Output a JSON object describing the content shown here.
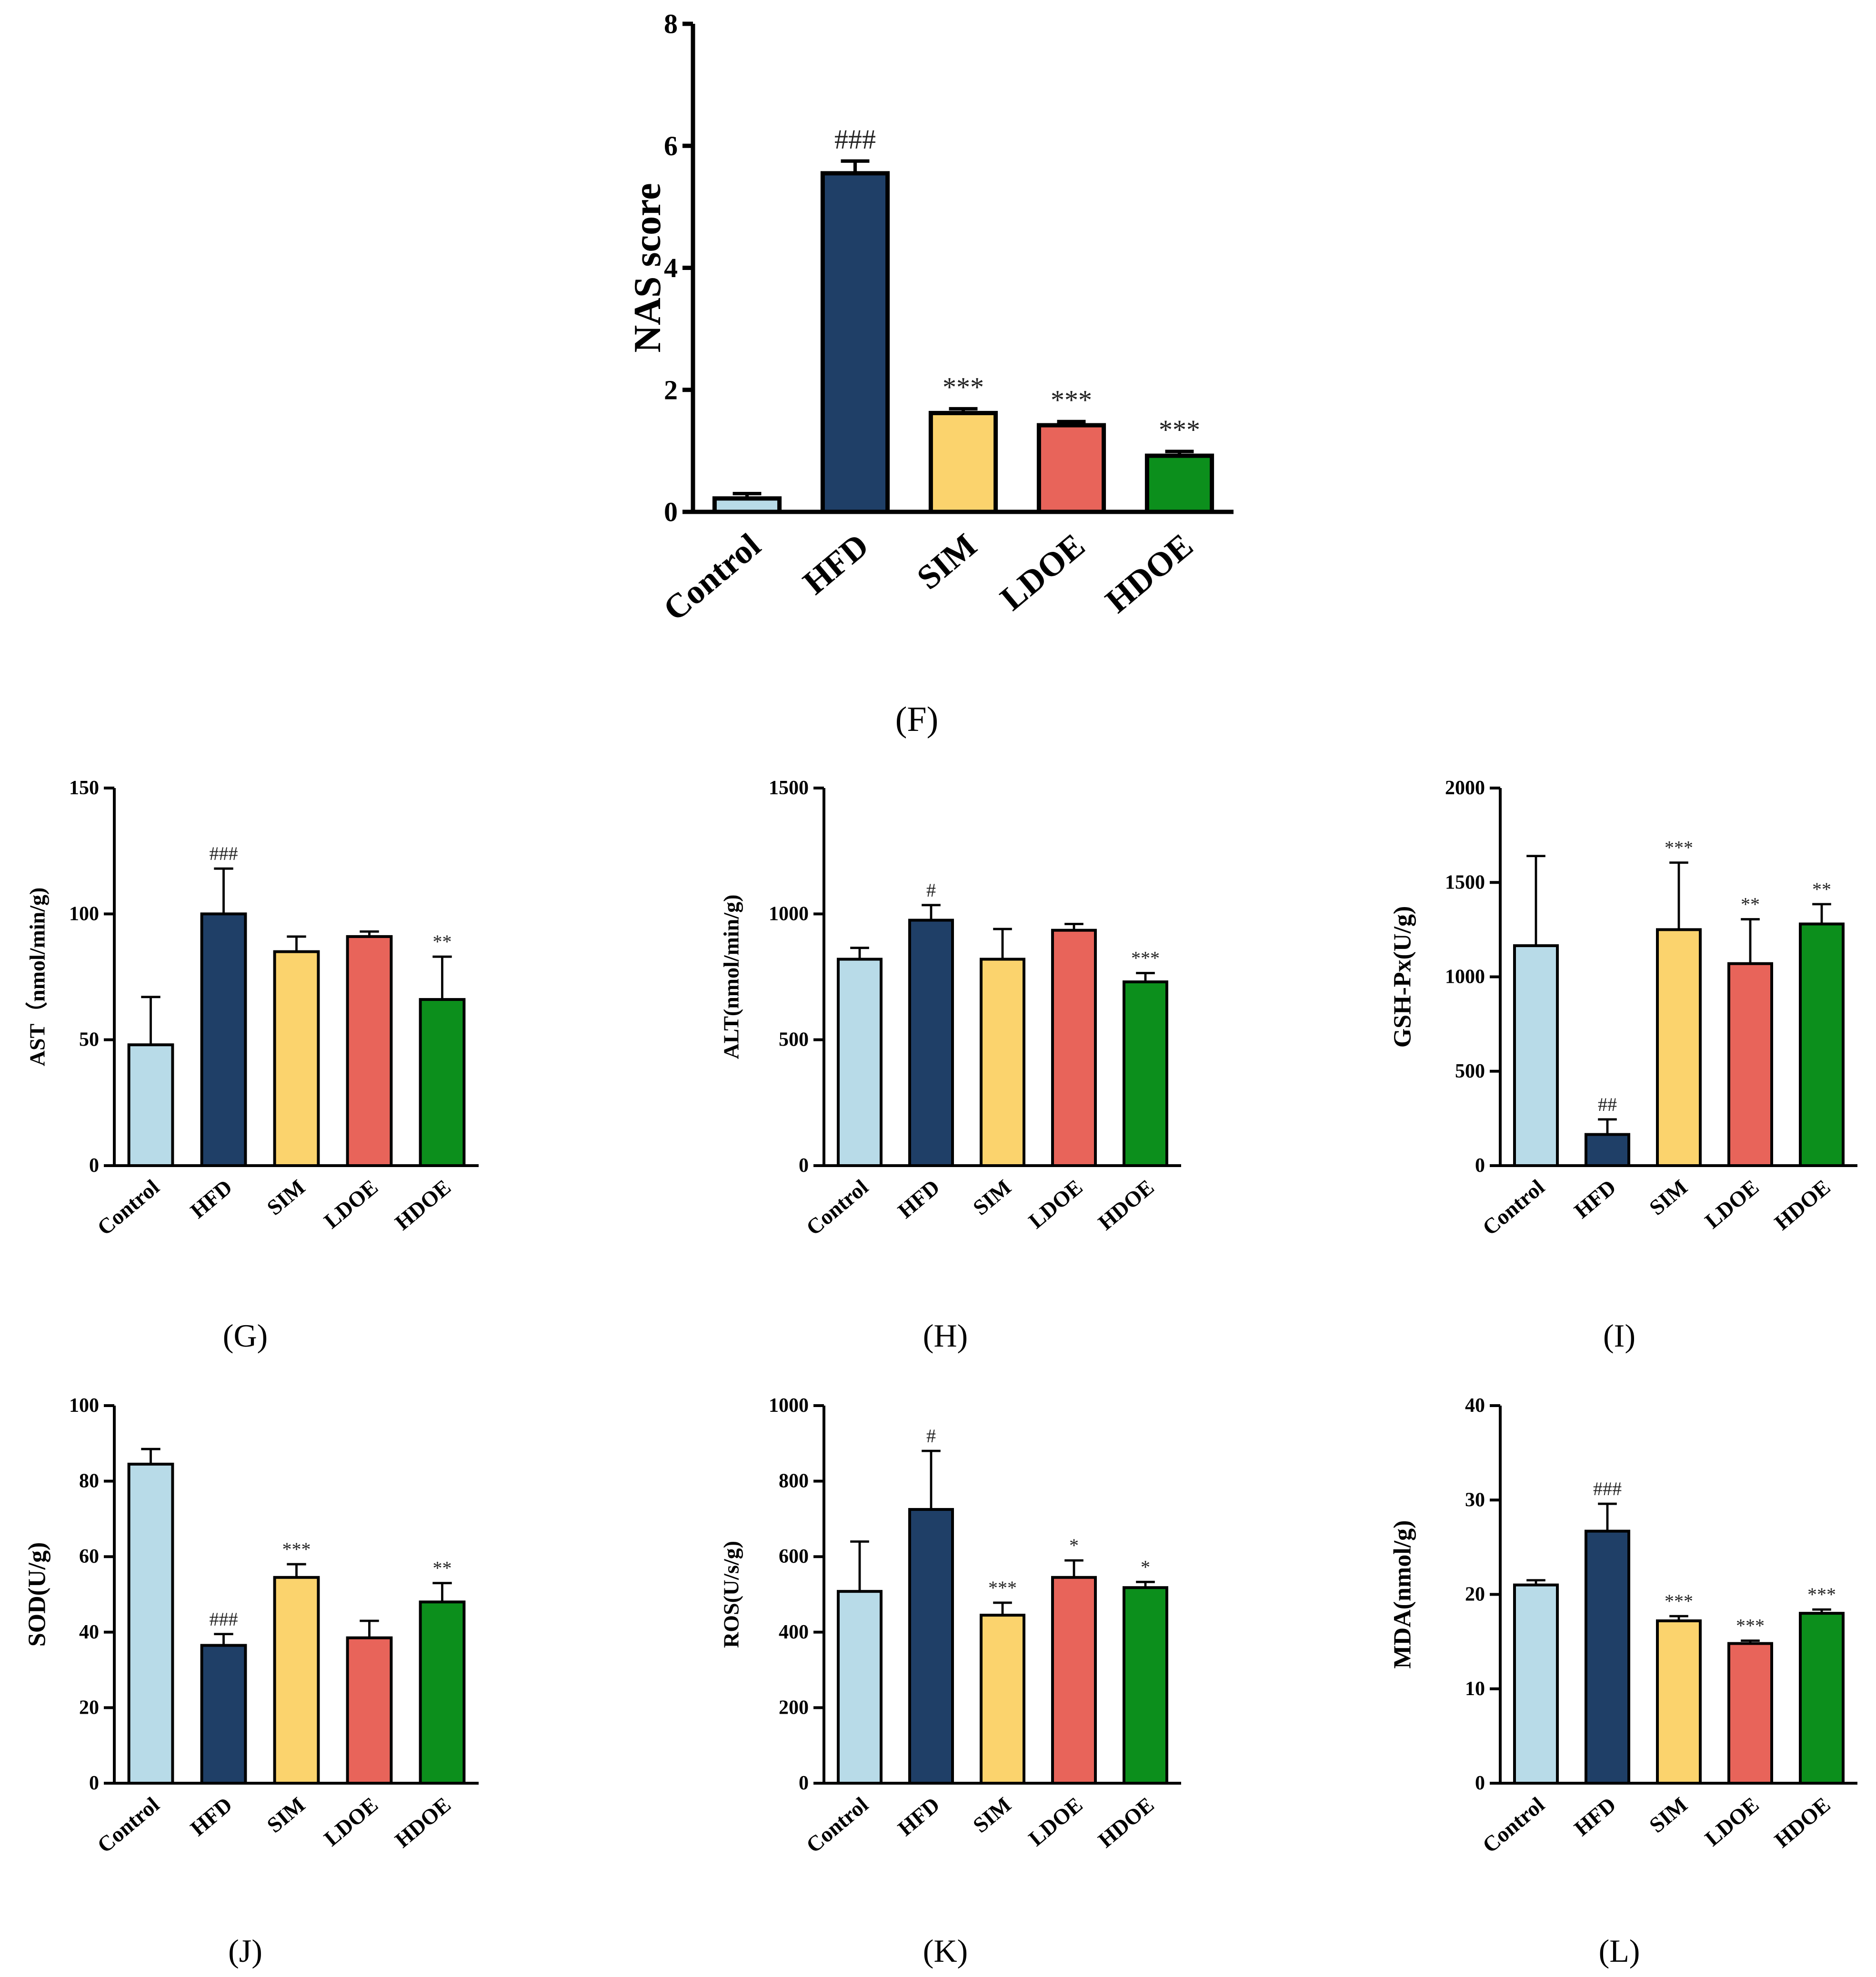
{
  "figure": {
    "categories": [
      "Control",
      "HFD",
      "SIM",
      "LDOE",
      "HDOE"
    ],
    "colors": [
      "#b8dbe8",
      "#1f3f67",
      "#fbd36d",
      "#e8645a",
      "#0c8f1c"
    ],
    "edge_color": "#000000"
  },
  "chart_data": [
    {
      "id": "F",
      "type": "bar",
      "panel_label": "(F)",
      "title": "",
      "xlabel": "",
      "ylabel": "NAS score",
      "ylim": [
        0,
        8
      ],
      "yticks": [
        0,
        2,
        4,
        6,
        8
      ],
      "categories": [
        "Control",
        "HFD",
        "SIM",
        "LDOE",
        "HDOE"
      ],
      "values": [
        0.22,
        5.55,
        1.62,
        1.42,
        0.92
      ],
      "errors": [
        0.08,
        0.2,
        0.07,
        0.06,
        0.07
      ],
      "annotations": [
        "",
        "###",
        "***",
        "***",
        "***"
      ]
    },
    {
      "id": "G",
      "type": "bar",
      "panel_label": "(G)",
      "title": "",
      "xlabel": "",
      "ylabel": "AST（nmol/min/g)",
      "ylim": [
        0,
        150
      ],
      "yticks": [
        0,
        50,
        100,
        150
      ],
      "categories": [
        "Control",
        "HFD",
        "SIM",
        "LDOE",
        "HDOE"
      ],
      "values": [
        48,
        100,
        85,
        91,
        66
      ],
      "errors": [
        19,
        18,
        6,
        2,
        17
      ],
      "annotations": [
        "",
        "###",
        "",
        "",
        "**"
      ]
    },
    {
      "id": "H",
      "type": "bar",
      "panel_label": "(H)",
      "title": "",
      "xlabel": "",
      "ylabel": "ALT(nmol/min/g)",
      "ylim": [
        0,
        1500
      ],
      "yticks": [
        0,
        500,
        1000,
        1500
      ],
      "categories": [
        "Control",
        "HFD",
        "SIM",
        "LDOE",
        "HDOE"
      ],
      "values": [
        820,
        975,
        820,
        935,
        730
      ],
      "errors": [
        45,
        60,
        120,
        25,
        35
      ],
      "annotations": [
        "",
        "#",
        "",
        "",
        "***"
      ]
    },
    {
      "id": "I",
      "type": "bar",
      "panel_label": "(I)",
      "title": "",
      "xlabel": "",
      "ylabel": "GSH-Px(U/g)",
      "ylim": [
        0,
        2000
      ],
      "yticks": [
        0,
        500,
        1000,
        1500,
        2000
      ],
      "categories": [
        "Control",
        "HFD",
        "SIM",
        "LDOE",
        "HDOE"
      ],
      "values": [
        1165,
        165,
        1250,
        1070,
        1280
      ],
      "errors": [
        475,
        80,
        355,
        235,
        105
      ],
      "annotations": [
        "",
        "##",
        "***",
        "**",
        "**"
      ]
    },
    {
      "id": "J",
      "type": "bar",
      "panel_label": "(J)",
      "title": "",
      "xlabel": "",
      "ylabel": "SOD(U/g)",
      "ylim": [
        0,
        100
      ],
      "yticks": [
        0,
        20,
        40,
        60,
        80,
        100
      ],
      "categories": [
        "Control",
        "HFD",
        "SIM",
        "LDOE",
        "HDOE"
      ],
      "values": [
        84.5,
        36.5,
        54.5,
        38.5,
        48
      ],
      "errors": [
        4,
        3,
        3.5,
        4.5,
        5
      ],
      "annotations": [
        "",
        "###",
        "***",
        "",
        "**"
      ]
    },
    {
      "id": "K",
      "type": "bar",
      "panel_label": "(K)",
      "title": "",
      "xlabel": "",
      "ylabel": "ROS(U/s/g)",
      "ylim": [
        0,
        1000
      ],
      "yticks": [
        0,
        200,
        400,
        600,
        800,
        1000
      ],
      "categories": [
        "Control",
        "HFD",
        "SIM",
        "LDOE",
        "HDOE"
      ],
      "values": [
        508,
        725,
        445,
        545,
        518
      ],
      "errors": [
        132,
        155,
        33,
        45,
        15
      ],
      "annotations": [
        "",
        "#",
        "***",
        "*",
        "*"
      ]
    },
    {
      "id": "L",
      "type": "bar",
      "panel_label": "(L)",
      "title": "",
      "xlabel": "",
      "ylabel": "MDA(nmol/g)",
      "ylim": [
        0,
        40
      ],
      "yticks": [
        0,
        10,
        20,
        30,
        40
      ],
      "categories": [
        "Control",
        "HFD",
        "SIM",
        "LDOE",
        "HDOE"
      ],
      "values": [
        21,
        26.7,
        17.2,
        14.8,
        18
      ],
      "errors": [
        0.5,
        2.9,
        0.5,
        0.3,
        0.4
      ],
      "annotations": [
        "",
        "###",
        "***",
        "***",
        "***"
      ]
    }
  ]
}
